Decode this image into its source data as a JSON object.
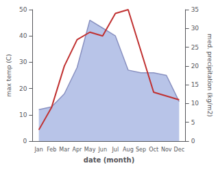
{
  "chart_data": {
    "type": "line",
    "xlabel": "date (month)",
    "ylabel": "max temp (C)",
    "y2label": "med. precipitation (kg/m2)",
    "categories": [
      "Jan",
      "Feb",
      "Mar",
      "Apr",
      "May",
      "Jun",
      "Jul",
      "Aug",
      "Sep",
      "Oct",
      "Nov",
      "Dec"
    ],
    "series": [
      {
        "type": "area",
        "color": "#b8c4e8",
        "values": [
          12,
          13,
          18,
          28,
          46,
          43,
          40,
          27,
          26,
          26,
          25,
          15
        ]
      },
      {
        "type": "line",
        "color": "#8890c0",
        "values": [
          12,
          13,
          18,
          28,
          46,
          43,
          40,
          27,
          26,
          26,
          25,
          15
        ]
      },
      {
        "type": "line",
        "color": "#c03030",
        "axis": "y2",
        "values": [
          3,
          9,
          20,
          27,
          29,
          28,
          34,
          35,
          24,
          13,
          12,
          11
        ]
      }
    ],
    "ylim": [
      0,
      50
    ],
    "yticks": [
      0,
      10,
      20,
      30,
      40,
      50
    ],
    "y2lim": [
      0,
      35
    ],
    "y2ticks": [
      0,
      5,
      10,
      15,
      20,
      25,
      30,
      35
    ],
    "grid": false
  }
}
